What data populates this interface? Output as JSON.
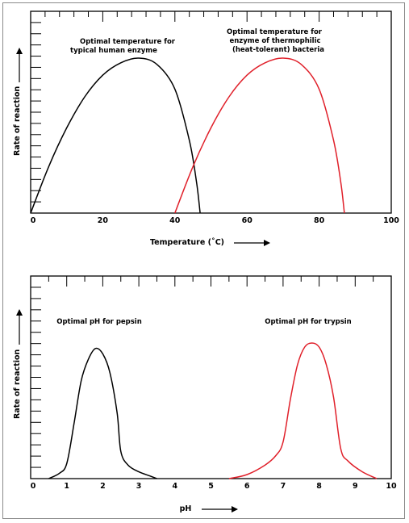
{
  "chart_data": [
    {
      "type": "line",
      "xlabel": "Temperature (˚C)",
      "ylabel": "Rate of reaction",
      "xlim": [
        0,
        100
      ],
      "xticks": [
        0,
        20,
        40,
        60,
        80,
        100
      ],
      "ylim": [
        0,
        1
      ],
      "grid": false,
      "series": [
        {
          "color": "#000000",
          "x": [
            0,
            5,
            10,
            15,
            20,
            25,
            30,
            35,
            40,
            44,
            46,
            47
          ],
          "y": [
            0,
            0.3,
            0.55,
            0.75,
            0.89,
            0.97,
            1.0,
            0.96,
            0.8,
            0.47,
            0.2,
            0
          ]
        },
        {
          "color": "#e0202a",
          "x": [
            40,
            45,
            50,
            55,
            60,
            65,
            70,
            75,
            80,
            84,
            86,
            87
          ],
          "y": [
            0,
            0.3,
            0.55,
            0.75,
            0.89,
            0.97,
            1.0,
            0.96,
            0.8,
            0.47,
            0.2,
            0
          ]
        }
      ],
      "annotations": [
        {
          "lines": [
            "Optimal temperature for",
            "typical human enzyme"
          ]
        },
        {
          "lines": [
            "Optimal temperature for",
            "enzyme of thermophilic",
            "(heat-tolerant) bacteria"
          ]
        }
      ]
    },
    {
      "type": "line",
      "xlabel": "pH",
      "ylabel": "Rate of reaction",
      "xlim": [
        0,
        10
      ],
      "xticks": [
        0,
        1,
        2,
        3,
        4,
        5,
        6,
        7,
        8,
        9,
        10
      ],
      "ylim": [
        0,
        1
      ],
      "grid": false,
      "series": [
        {
          "color": "#000000",
          "x": [
            0.5,
            0.8,
            1.0,
            1.2,
            1.4,
            1.6,
            1.8,
            2.0,
            2.2,
            2.4,
            2.5,
            2.7,
            3.0,
            3.3,
            3.5
          ],
          "y": [
            0,
            0.04,
            0.11,
            0.4,
            0.72,
            0.88,
            0.96,
            0.92,
            0.78,
            0.48,
            0.2,
            0.1,
            0.05,
            0.02,
            0
          ]
        },
        {
          "color": "#e0202a",
          "x": [
            5.5,
            6.0,
            6.5,
            6.8,
            7.0,
            7.2,
            7.4,
            7.6,
            7.8,
            8.0,
            8.2,
            8.4,
            8.6,
            8.8,
            9.2,
            9.6
          ],
          "y": [
            0,
            0.03,
            0.1,
            0.17,
            0.27,
            0.58,
            0.84,
            0.97,
            1.0,
            0.97,
            0.84,
            0.6,
            0.22,
            0.13,
            0.05,
            0
          ]
        }
      ],
      "annotations": [
        {
          "lines": [
            "Optimal pH for pepsin"
          ]
        },
        {
          "lines": [
            "Optimal pH for trypsin"
          ]
        }
      ]
    }
  ]
}
